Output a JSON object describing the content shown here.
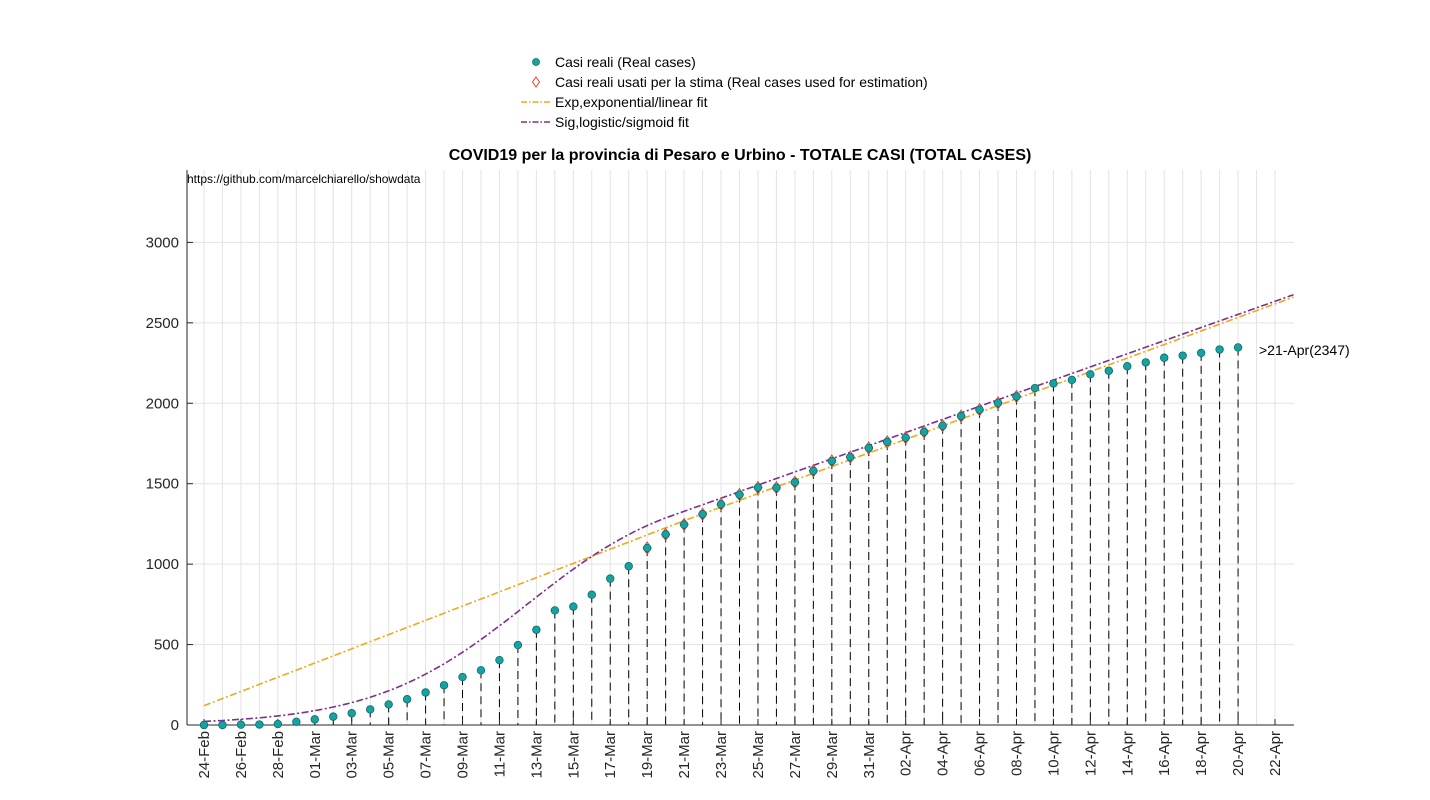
{
  "chart_data": {
    "type": "scatter",
    "title": "COVID19 per la provincia di Pesaro e Urbino - TOTALE CASI (TOTAL CASES)",
    "source_note": "https://github.com/marcelchiarello/showdata",
    "xlabel": "",
    "ylabel": "",
    "ylim": [
      0,
      3450
    ],
    "yticks": [
      0,
      500,
      1000,
      1500,
      2000,
      2500,
      3000
    ],
    "x_start_date": "24-Feb",
    "x_tick_labels": [
      "24-Feb",
      "26-Feb",
      "28-Feb",
      "01-Mar",
      "03-Mar",
      "05-Mar",
      "07-Mar",
      "09-Mar",
      "11-Mar",
      "13-Mar",
      "15-Mar",
      "17-Mar",
      "19-Mar",
      "21-Mar",
      "23-Mar",
      "25-Mar",
      "27-Mar",
      "29-Mar",
      "31-Mar",
      "02-Apr",
      "04-Apr",
      "06-Apr",
      "08-Apr",
      "10-Apr",
      "12-Apr",
      "14-Apr",
      "16-Apr",
      "18-Apr",
      "20-Apr",
      "22-Apr"
    ],
    "grid": true,
    "legend_position": "top-center",
    "annotation": ">21-Apr(2347)",
    "series": [
      {
        "name": "Casi reali (Real cases)",
        "kind": "marker",
        "color": "#17a2a2",
        "values": [
          0,
          0,
          2,
          3,
          6,
          20,
          35,
          52,
          73,
          97,
          128,
          160,
          202,
          247,
          298,
          340,
          403,
          497,
          592,
          712,
          736,
          810,
          910,
          987,
          1100,
          1185,
          1246,
          1310,
          1372,
          1432,
          1476,
          1475,
          1509,
          1580,
          1641,
          1665,
          1722,
          1760,
          1786,
          1822,
          1860,
          1920,
          1960,
          2002,
          2042,
          2094,
          2123,
          2145,
          2180,
          2202,
          2230,
          2254,
          2283,
          2296,
          2313,
          2334,
          2347
        ]
      },
      {
        "name": "Casi reali usati per la stima (Real cases used for estimation)",
        "kind": "diamond",
        "color": "#e8412a",
        "start_index": 24,
        "end_index": 44
      },
      {
        "name": "Exp,exponential/linear fit",
        "kind": "dashdot",
        "color": "#f0a81c",
        "segments": [
          {
            "from_index": 0,
            "to_index": 26,
            "y_start": 120,
            "y_end": 1270
          },
          {
            "from_index": 26,
            "to_index": 59,
            "y_start": 1270,
            "y_end": 2660
          }
        ]
      },
      {
        "name": "Sig,logistic/sigmoid fit",
        "kind": "dashdot",
        "color": "#7e2f8e",
        "logistic": {
          "L": 1500,
          "k": 0.24,
          "x0": 17.5
        },
        "linear_from_index": 25,
        "linear_y_start": 1220,
        "linear_y_end": 2675,
        "linear_to_index": 59
      }
    ]
  }
}
